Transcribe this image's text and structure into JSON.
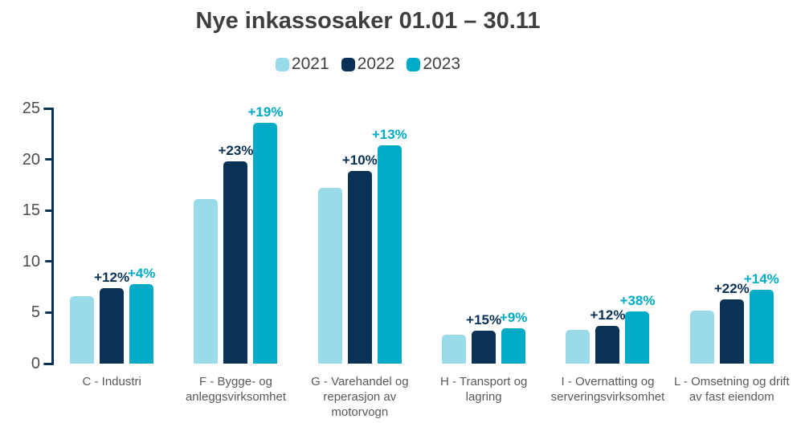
{
  "chart_data": {
    "type": "bar",
    "title": "Nye inkassosaker 01.01 – 30.11",
    "categories": [
      "C - Industri",
      "F - Bygge- og anleggsvirksomhet",
      "G - Varehandel og reperasjon av motorvogn",
      "H - Transport og lagring",
      "I - Overnatting og serveringsvirksomhet",
      "L - Omsetning og drift av fast eiendom"
    ],
    "series": [
      {
        "name": "2021",
        "color": "#9adbe9",
        "values": [
          6.6,
          16.1,
          17.2,
          2.8,
          3.3,
          5.2
        ]
      },
      {
        "name": "2022",
        "color": "#0a3156",
        "values": [
          7.4,
          19.8,
          18.9,
          3.2,
          3.7,
          6.3
        ],
        "labels": [
          "+12%",
          "+23%",
          "+10%",
          "+15%",
          "+12%",
          "+22%"
        ]
      },
      {
        "name": "2023",
        "color": "#00abc8",
        "values": [
          7.8,
          23.6,
          21.4,
          3.5,
          5.1,
          7.2
        ],
        "labels": [
          "+4%",
          "+19%",
          "+13%",
          "+9%",
          "+38%",
          "+14%"
        ]
      }
    ],
    "ylim": [
      0,
      25
    ],
    "yticks": [
      0,
      5,
      10,
      15,
      20,
      25
    ],
    "grid": false,
    "legend_position": "top-center",
    "value_label_color_follows_series": true
  },
  "colors": {
    "background": "#ffffff",
    "title_text": "#3f3f3f",
    "axis": "#0a3156",
    "ytick_label": "#4d4d4d",
    "category_label": "#595959",
    "legend_label": "#404040"
  }
}
